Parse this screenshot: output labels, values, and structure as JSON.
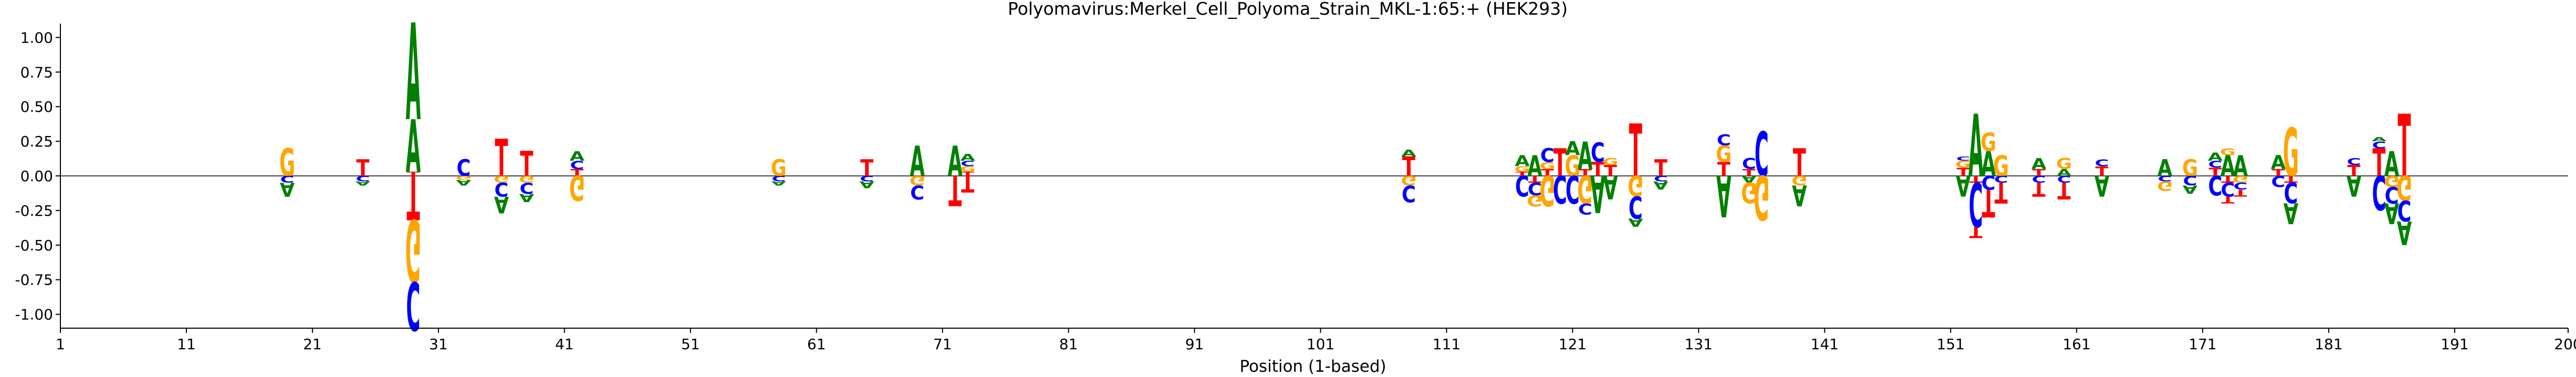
{
  "chart_data": {
    "type": "sequence-logo",
    "title": "Polyomavirus:Merkel_Cell_Polyoma_Strain_MKL-1:65:+  (HEK293)",
    "xlabel": "Position (1-based)",
    "ylabel": "",
    "xlim": [
      1,
      200
    ],
    "ylim": [
      -1.1,
      1.1
    ],
    "x_ticks": [
      "1",
      "11",
      "21",
      "31",
      "41",
      "51",
      "61",
      "71",
      "81",
      "91",
      "101",
      "111",
      "121",
      "131",
      "141",
      "151",
      "161",
      "171",
      "181",
      "191",
      "200"
    ],
    "y_ticks": [
      "1.00",
      "0.75",
      "0.50",
      "0.25",
      "0.00",
      "-0.25",
      "-0.50",
      "-0.75",
      "-1.00"
    ],
    "y_tick_values": [
      1.0,
      0.75,
      0.5,
      0.25,
      0.0,
      -0.25,
      -0.5,
      -0.75,
      -1.0
    ],
    "zero_line": true,
    "grid": false,
    "colors": {
      "A": "#008000",
      "C": "#0000ff",
      "G": "#ffa500",
      "T": "#ff0000"
    },
    "columns": [
      {
        "pos": 19,
        "up": [
          [
            "G",
            0.2
          ]
        ],
        "down": [
          [
            "C",
            0.05
          ],
          [
            "A",
            0.1
          ]
        ]
      },
      {
        "pos": 25,
        "up": [
          [
            "T",
            0.12
          ]
        ],
        "down": [
          [
            "C",
            0.04
          ],
          [
            "A",
            0.03
          ]
        ]
      },
      {
        "pos": 29,
        "up": [
          [
            "T",
            0.03
          ],
          [
            "A",
            0.38
          ],
          [
            "A",
            0.7
          ]
        ],
        "down": [
          [
            "T",
            0.32
          ],
          [
            "G",
            0.45
          ],
          [
            "C",
            0.35
          ]
        ]
      },
      {
        "pos": 33,
        "up": [
          [
            "C",
            0.12
          ]
        ],
        "down": [
          [
            "G",
            0.03
          ],
          [
            "A",
            0.04
          ]
        ]
      },
      {
        "pos": 36,
        "up": [
          [
            "T",
            0.27
          ]
        ],
        "down": [
          [
            "G",
            0.05
          ],
          [
            "C",
            0.1
          ],
          [
            "A",
            0.12
          ]
        ]
      },
      {
        "pos": 38,
        "up": [
          [
            "T",
            0.18
          ]
        ],
        "down": [
          [
            "G",
            0.05
          ],
          [
            "C",
            0.08
          ],
          [
            "A",
            0.06
          ]
        ]
      },
      {
        "pos": 42,
        "up": [
          [
            "T",
            0.05
          ],
          [
            "C",
            0.06
          ],
          [
            "A",
            0.07
          ]
        ],
        "down": [
          [
            "G",
            0.18
          ]
        ]
      },
      {
        "pos": 58,
        "up": [
          [
            "G",
            0.12
          ]
        ],
        "down": [
          [
            "C",
            0.04
          ],
          [
            "A",
            0.03
          ]
        ]
      },
      {
        "pos": 65,
        "up": [
          [
            "T",
            0.12
          ]
        ],
        "down": [
          [
            "C",
            0.04
          ],
          [
            "A",
            0.05
          ]
        ]
      },
      {
        "pos": 69,
        "up": [
          [
            "A",
            0.22
          ]
        ],
        "down": [
          [
            "G",
            0.07
          ],
          [
            "C",
            0.1
          ]
        ]
      },
      {
        "pos": 72,
        "up": [
          [
            "A",
            0.22
          ]
        ],
        "down": [
          [
            "T",
            0.22
          ]
        ]
      },
      {
        "pos": 73,
        "up": [
          [
            "T",
            0.03
          ],
          [
            "G",
            0.04
          ],
          [
            "C",
            0.04
          ],
          [
            "A",
            0.05
          ]
        ],
        "down": [
          [
            "T",
            0.12
          ]
        ]
      },
      {
        "pos": 108,
        "up": [
          [
            "T",
            0.14
          ],
          [
            "A",
            0.05
          ]
        ],
        "down": [
          [
            "G",
            0.07
          ],
          [
            "C",
            0.12
          ]
        ]
      },
      {
        "pos": 117,
        "up": [
          [
            "T",
            0.03
          ],
          [
            "G",
            0.04
          ],
          [
            "A",
            0.08
          ]
        ],
        "down": [
          [
            "C",
            0.15
          ]
        ]
      },
      {
        "pos": 118,
        "up": [
          [
            "A",
            0.15
          ]
        ],
        "down": [
          [
            "T",
            0.05
          ],
          [
            "C",
            0.09
          ],
          [
            "G",
            0.08
          ]
        ]
      },
      {
        "pos": 119,
        "up": [
          [
            "T",
            0.05
          ],
          [
            "G",
            0.05
          ],
          [
            "C",
            0.1
          ]
        ],
        "down": [
          [
            "G",
            0.22
          ]
        ]
      },
      {
        "pos": 120,
        "up": [
          [
            "T",
            0.2
          ]
        ],
        "down": [
          [
            "C",
            0.2
          ]
        ]
      },
      {
        "pos": 121,
        "up": [
          [
            "G",
            0.15
          ],
          [
            "A",
            0.1
          ]
        ],
        "down": [
          [
            "C",
            0.2
          ]
        ]
      },
      {
        "pos": 122,
        "up": [
          [
            "T",
            0.05
          ],
          [
            "A",
            0.2
          ]
        ],
        "down": [
          [
            "G",
            0.2
          ],
          [
            "C",
            0.08
          ]
        ]
      },
      {
        "pos": 123,
        "up": [
          [
            "T",
            0.1
          ],
          [
            "C",
            0.14
          ]
        ],
        "down": [
          [
            "A",
            0.27
          ]
        ]
      },
      {
        "pos": 124,
        "up": [
          [
            "T",
            0.08
          ],
          [
            "G",
            0.05
          ]
        ],
        "down": [
          [
            "A",
            0.17
          ]
        ]
      },
      {
        "pos": 126,
        "up": [
          [
            "T",
            0.38
          ]
        ],
        "down": [
          [
            "G",
            0.15
          ],
          [
            "C",
            0.16
          ],
          [
            "A",
            0.06
          ]
        ]
      },
      {
        "pos": 128,
        "up": [
          [
            "T",
            0.12
          ]
        ],
        "down": [
          [
            "C",
            0.04
          ],
          [
            "A",
            0.06
          ]
        ]
      },
      {
        "pos": 133,
        "up": [
          [
            "T",
            0.1
          ],
          [
            "G",
            0.12
          ],
          [
            "C",
            0.08
          ]
        ],
        "down": [
          [
            "A",
            0.3
          ]
        ]
      },
      {
        "pos": 135,
        "up": [
          [
            "T",
            0.05
          ],
          [
            "C",
            0.08
          ]
        ],
        "down": [
          [
            "A",
            0.05
          ],
          [
            "G",
            0.15
          ]
        ]
      },
      {
        "pos": 136,
        "up": [
          [
            "C",
            0.32
          ]
        ],
        "down": [
          [
            "G",
            0.32
          ]
        ]
      },
      {
        "pos": 139,
        "up": [
          [
            "T",
            0.2
          ]
        ],
        "down": [
          [
            "G",
            0.07
          ],
          [
            "A",
            0.15
          ]
        ]
      },
      {
        "pos": 152,
        "up": [
          [
            "T",
            0.06
          ],
          [
            "G",
            0.05
          ],
          [
            "C",
            0.03
          ]
        ],
        "down": [
          [
            "A",
            0.15
          ]
        ]
      },
      {
        "pos": 153,
        "up": [
          [
            "A",
            0.45
          ]
        ],
        "down": [
          [
            "T",
            0.05
          ],
          [
            "C",
            0.32
          ],
          [
            "T",
            0.08
          ]
        ]
      },
      {
        "pos": 154,
        "up": [
          [
            "A",
            0.18
          ],
          [
            "G",
            0.13
          ]
        ],
        "down": [
          [
            "C",
            0.1
          ],
          [
            "T",
            0.2
          ]
        ]
      },
      {
        "pos": 155,
        "up": [
          [
            "G",
            0.15
          ]
        ],
        "down": [
          [
            "C",
            0.05
          ],
          [
            "T",
            0.15
          ]
        ]
      },
      {
        "pos": 158,
        "up": [
          [
            "T",
            0.05
          ],
          [
            "A",
            0.08
          ]
        ],
        "down": [
          [
            "C",
            0.05
          ],
          [
            "T",
            0.1
          ]
        ]
      },
      {
        "pos": 160,
        "up": [
          [
            "A",
            0.05
          ],
          [
            "G",
            0.08
          ]
        ],
        "down": [
          [
            "C",
            0.05
          ],
          [
            "T",
            0.12
          ]
        ]
      },
      {
        "pos": 163,
        "up": [
          [
            "T",
            0.07
          ],
          [
            "C",
            0.05
          ]
        ],
        "down": [
          [
            "A",
            0.15
          ]
        ]
      },
      {
        "pos": 168,
        "up": [
          [
            "A",
            0.12
          ]
        ],
        "down": [
          [
            "C",
            0.04
          ],
          [
            "G",
            0.07
          ]
        ]
      },
      {
        "pos": 170,
        "up": [
          [
            "G",
            0.12
          ]
        ],
        "down": [
          [
            "C",
            0.07
          ],
          [
            "A",
            0.06
          ]
        ]
      },
      {
        "pos": 172,
        "up": [
          [
            "T",
            0.06
          ],
          [
            "C",
            0.05
          ],
          [
            "A",
            0.06
          ]
        ],
        "down": [
          [
            "C",
            0.14
          ]
        ]
      },
      {
        "pos": 173,
        "up": [
          [
            "A",
            0.15
          ],
          [
            "G",
            0.05
          ]
        ],
        "down": [
          [
            "T",
            0.05
          ],
          [
            "C",
            0.1
          ],
          [
            "T",
            0.05
          ]
        ]
      },
      {
        "pos": 174,
        "up": [
          [
            "A",
            0.15
          ]
        ],
        "down": [
          [
            "G",
            0.05
          ],
          [
            "C",
            0.05
          ],
          [
            "T",
            0.05
          ]
        ]
      },
      {
        "pos": 177,
        "up": [
          [
            "T",
            0.05
          ],
          [
            "A",
            0.1
          ]
        ],
        "down": [
          [
            "C",
            0.08
          ]
        ]
      },
      {
        "pos": 178,
        "up": [
          [
            "G",
            0.35
          ]
        ],
        "down": [
          [
            "T",
            0.05
          ],
          [
            "C",
            0.15
          ],
          [
            "A",
            0.15
          ]
        ]
      },
      {
        "pos": 183,
        "up": [
          [
            "T",
            0.08
          ],
          [
            "C",
            0.05
          ]
        ],
        "down": [
          [
            "A",
            0.15
          ]
        ]
      },
      {
        "pos": 185,
        "up": [
          [
            "T",
            0.2
          ],
          [
            "C",
            0.05
          ],
          [
            "A",
            0.03
          ]
        ],
        "down": [
          [
            "C",
            0.25
          ]
        ]
      },
      {
        "pos": 186,
        "up": [
          [
            "A",
            0.18
          ]
        ],
        "down": [
          [
            "G",
            0.08
          ],
          [
            "C",
            0.12
          ],
          [
            "A",
            0.15
          ]
        ]
      },
      {
        "pos": 187,
        "up": [
          [
            "T",
            0.45
          ]
        ],
        "down": [
          [
            "G",
            0.18
          ],
          [
            "C",
            0.15
          ],
          [
            "A",
            0.17
          ]
        ]
      }
    ]
  }
}
